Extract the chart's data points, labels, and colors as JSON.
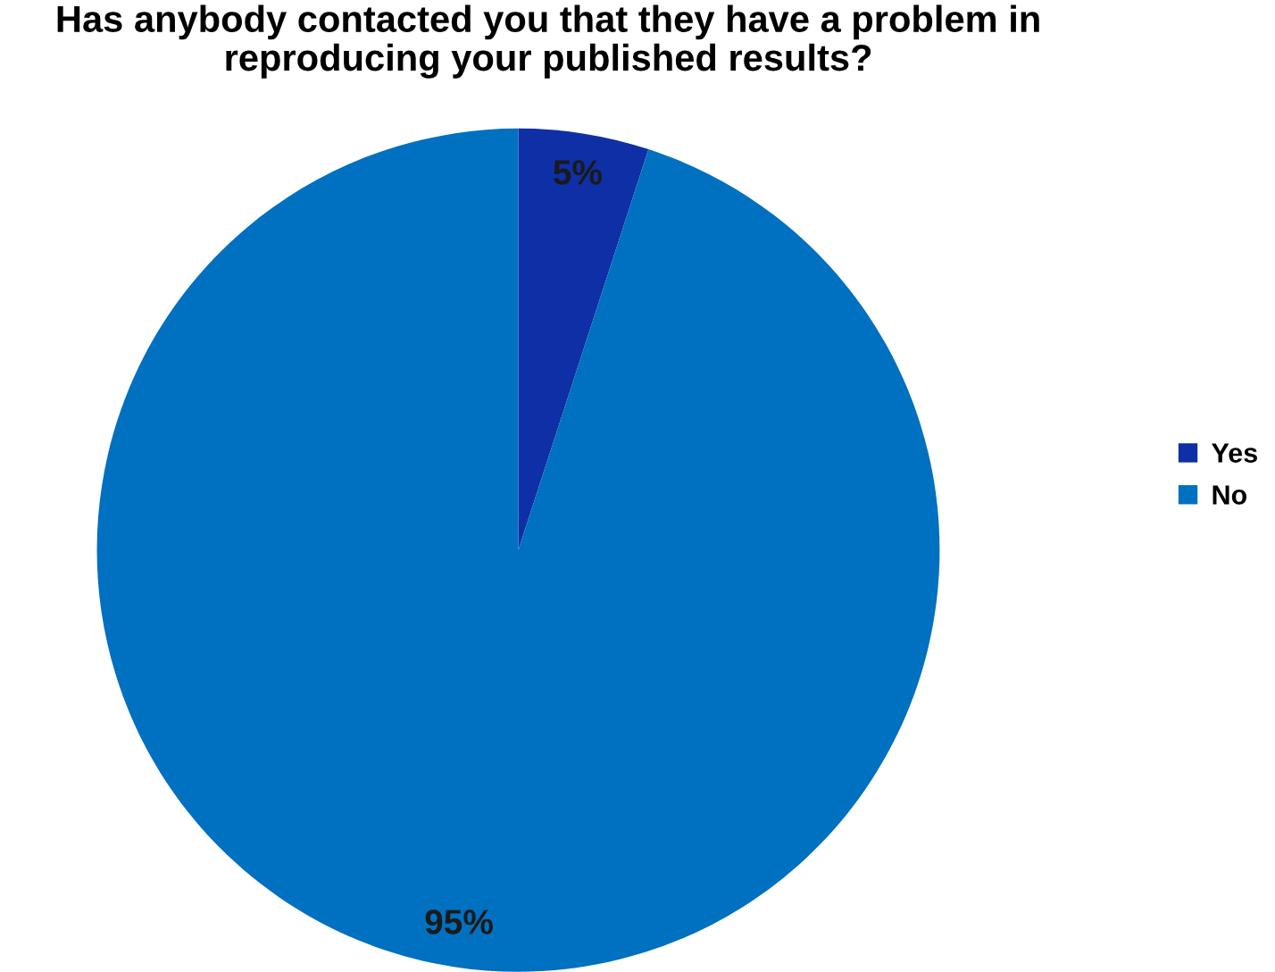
{
  "chart_data": {
    "type": "pie",
    "title": "Has anybody contacted you that they have a problem in\nreproducing your published results?",
    "categories": [
      "Yes",
      "No"
    ],
    "values": [
      5,
      95
    ],
    "colors": [
      "#0f2fa6",
      "#0070c1"
    ],
    "value_labels": [
      "5%",
      "95%"
    ],
    "legend": "right"
  }
}
